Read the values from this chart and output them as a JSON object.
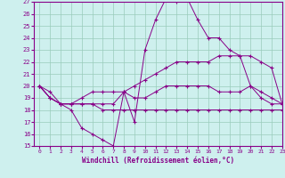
{
  "xlabel": "Windchill (Refroidissement éolien,°C)",
  "x": [
    0,
    1,
    2,
    3,
    4,
    5,
    6,
    7,
    8,
    9,
    10,
    11,
    12,
    13,
    14,
    15,
    16,
    17,
    18,
    19,
    20,
    21,
    22,
    23
  ],
  "line1": [
    20,
    19,
    18.5,
    18,
    16.5,
    16,
    15.5,
    15,
    19.5,
    17,
    23,
    25.5,
    27.3,
    27,
    27.3,
    25.5,
    24,
    24,
    23,
    22.5,
    20,
    19,
    18.5,
    18.5
  ],
  "line2": [
    20,
    19.5,
    18.5,
    18.5,
    18.5,
    18.5,
    18,
    18,
    18,
    18,
    18,
    18,
    18,
    18,
    18,
    18,
    18,
    18,
    18,
    18,
    18,
    18,
    18,
    18
  ],
  "line3": [
    20,
    19,
    18.5,
    18.5,
    18.5,
    18.5,
    18.5,
    18.5,
    19.5,
    19,
    19,
    19.5,
    20,
    20,
    20,
    20,
    20,
    19.5,
    19.5,
    19.5,
    20,
    19.5,
    19,
    18.5
  ],
  "line4": [
    20,
    19,
    18.5,
    18.5,
    19,
    19.5,
    19.5,
    19.5,
    19.5,
    20,
    20.5,
    21,
    21.5,
    22,
    22,
    22,
    22,
    22.5,
    22.5,
    22.5,
    22.5,
    22,
    21.5,
    18.5
  ],
  "color": "#880088",
  "bg_color": "#cef0ee",
  "grid_color": "#99ccbb",
  "ylim": [
    15,
    27
  ],
  "xlim": [
    -0.5,
    23
  ],
  "yticks": [
    15,
    16,
    17,
    18,
    19,
    20,
    21,
    22,
    23,
    24,
    25,
    26,
    27
  ],
  "xticks": [
    0,
    1,
    2,
    3,
    4,
    5,
    6,
    7,
    8,
    9,
    10,
    11,
    12,
    13,
    14,
    15,
    16,
    17,
    18,
    19,
    20,
    21,
    22,
    23
  ]
}
